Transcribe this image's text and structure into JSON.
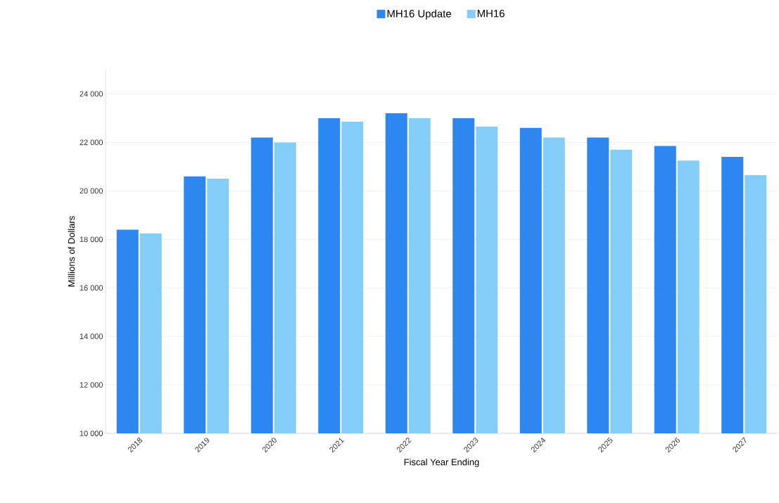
{
  "chart_data": {
    "type": "bar",
    "xlabel": "Fiscal Year Ending",
    "ylabel": "Millions of Dollars",
    "categories": [
      "2018",
      "2019",
      "2020",
      "2021",
      "2022",
      "2023",
      "2024",
      "2025",
      "2026",
      "2027"
    ],
    "series": [
      {
        "name": "MH16 Update",
        "color": "#2e86f0",
        "values": [
          18400,
          20600,
          22200,
          23000,
          23200,
          23000,
          22600,
          22200,
          21850,
          21400
        ]
      },
      {
        "name": "MH16",
        "color": "#85cdf9",
        "values": [
          18250,
          20500,
          22000,
          22850,
          23000,
          22650,
          22200,
          21700,
          21250,
          20650
        ]
      }
    ],
    "ylim": [
      10000,
      25000
    ],
    "yticks": [
      {
        "value": 10000,
        "label": "10 000"
      },
      {
        "value": 12000,
        "label": "12 000"
      },
      {
        "value": 14000,
        "label": "14 000"
      },
      {
        "value": 16000,
        "label": "16 000"
      },
      {
        "value": 18000,
        "label": "18 000"
      },
      {
        "value": 20000,
        "label": "20 000"
      },
      {
        "value": 22000,
        "label": "22 000"
      },
      {
        "value": 24000,
        "label": "24 000"
      }
    ],
    "grid": "y",
    "legend": "top"
  }
}
